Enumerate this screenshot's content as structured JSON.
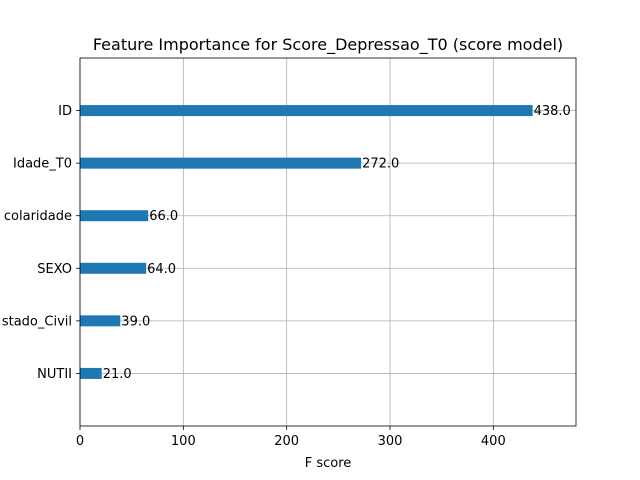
{
  "chart_data": {
    "type": "bar",
    "orientation": "horizontal",
    "title": "Feature Importance for Score_Depressao_T0 (score model)",
    "xlabel": "F score",
    "ylabel": "",
    "xlim": [
      0,
      480
    ],
    "x_ticks": [
      0,
      100,
      200,
      300,
      400
    ],
    "categories": [
      "ID",
      "Idade_T0",
      "Escolaridade",
      "SEXO",
      "Estado_Civil",
      "NUTII"
    ],
    "category_labels": [
      "ID",
      "Idade_T0",
      "colaridade",
      "SEXO",
      "stado_Civil",
      "NUTII"
    ],
    "values": [
      438,
      272,
      66,
      64,
      39,
      21
    ],
    "value_labels": [
      "438.0",
      "272.0",
      "66.0",
      "64.0",
      "39.0",
      "21.0"
    ],
    "bar_color": "#1f77b4",
    "grid": true,
    "legend": "none"
  }
}
